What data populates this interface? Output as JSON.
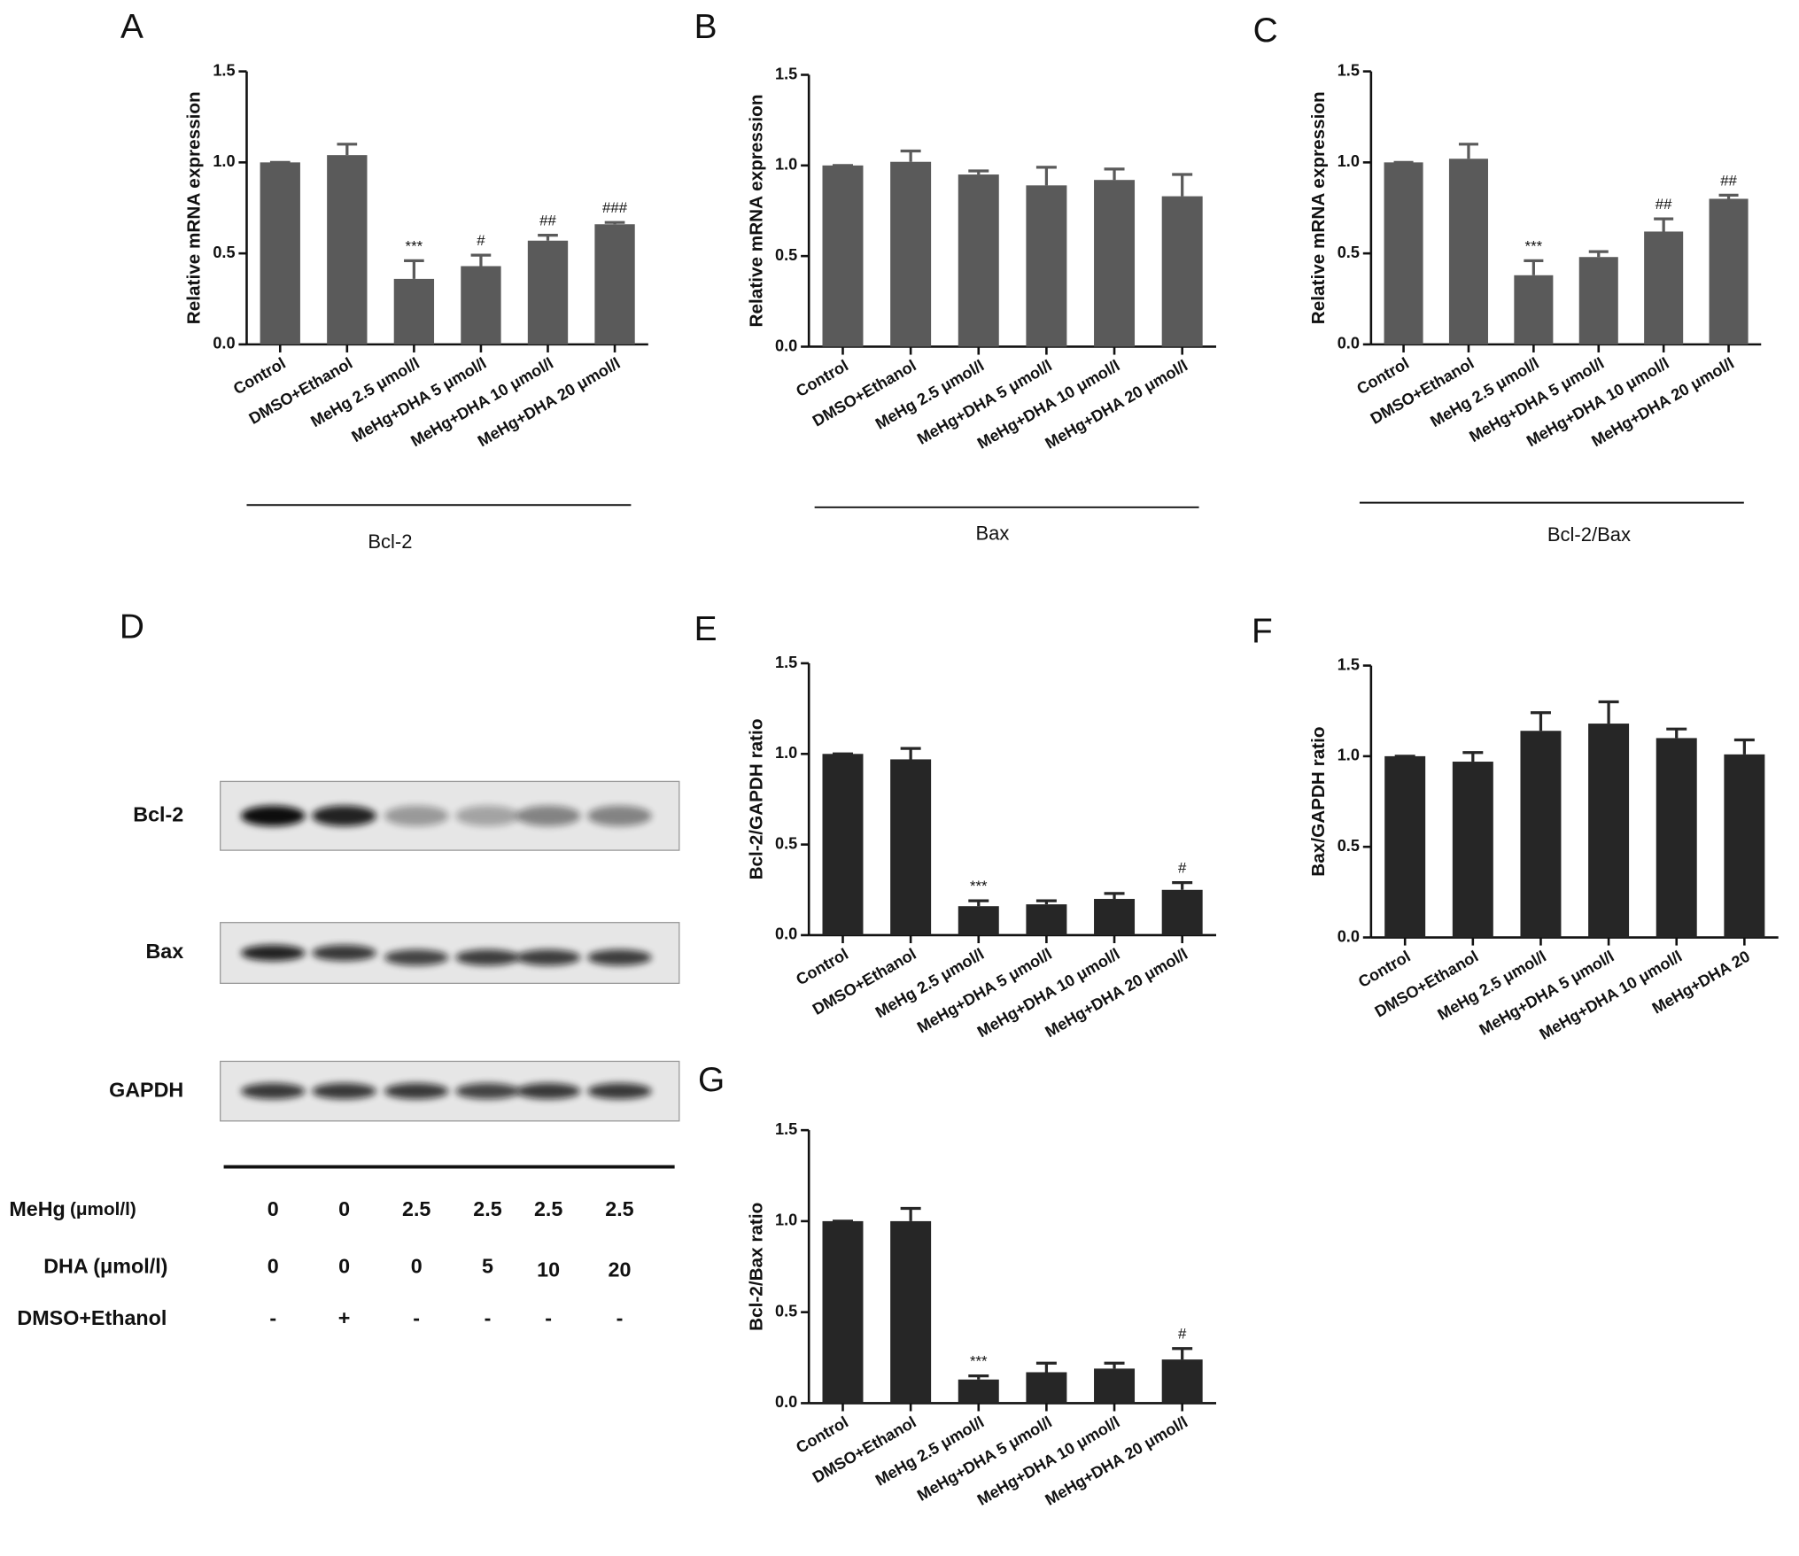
{
  "chart_data": [
    {
      "panel": "A",
      "type": "bar",
      "ylabel": "Relative mRNA expression",
      "group": "Bcl-2",
      "color": "#5a5a5a",
      "categories": [
        "Control",
        "DMSO+Ethanol",
        "MeHg 2.5 μmol/l",
        "MeHg+DHA 5 μmol/l",
        "MeHg+DHA 10 μmol/l",
        "MeHg+DHA 20 μmol/l"
      ],
      "values": [
        1.0,
        1.04,
        0.36,
        0.43,
        0.57,
        0.66
      ],
      "errors": [
        0,
        0.06,
        0.1,
        0.06,
        0.03,
        0.01
      ],
      "annotations": [
        null,
        null,
        "***",
        "#",
        "##",
        "###"
      ],
      "ylim": [
        0,
        1.5
      ],
      "yticks": [
        {
          "value": 0,
          "label": "0.0"
        },
        0.5,
        {
          "value": 1,
          "label": "1.0"
        },
        1.5
      ]
    },
    {
      "panel": "B",
      "type": "bar",
      "ylabel": "Relative mRNA expression",
      "group": "Bax",
      "color": "#5a5a5a",
      "categories": [
        "Control",
        "DMSO+Ethanol",
        "MeHg 2.5 μmol/l",
        "MeHg+DHA 5 μmol/l",
        "MeHg+DHA 10 μmol/l",
        "MeHg+DHA 20 μmol/l"
      ],
      "values": [
        1.0,
        1.02,
        0.95,
        0.89,
        0.92,
        0.83
      ],
      "errors": [
        0,
        0.06,
        0.02,
        0.1,
        0.06,
        0.12
      ],
      "annotations": [
        null,
        null,
        null,
        null,
        null,
        null
      ],
      "ylim": [
        0,
        1.5
      ],
      "yticks": [
        {
          "value": 0,
          "label": "0.0"
        },
        0.5,
        {
          "value": 1,
          "label": "1.0"
        },
        1.5
      ]
    },
    {
      "panel": "C",
      "type": "bar",
      "ylabel": "Relative mRNA expression",
      "group": "Bcl-2/Bax",
      "color": "#5a5a5a",
      "categories": [
        "Control",
        "DMSO+Ethanol",
        "MeHg 2.5 μmol/l",
        "MeHg+DHA 5 μmol/l",
        "MeHg+DHA 10 μmol/l",
        "MeHg+DHA 20 μmol/l"
      ],
      "values": [
        1.0,
        1.02,
        0.38,
        0.48,
        0.62,
        0.8
      ],
      "errors": [
        0,
        0.08,
        0.08,
        0.03,
        0.07,
        0.02
      ],
      "annotations": [
        null,
        null,
        "***",
        null,
        "##",
        "##"
      ],
      "ylim": [
        0,
        1.5
      ],
      "yticks": [
        {
          "value": 0,
          "label": "0.0"
        },
        0.5,
        {
          "value": 1,
          "label": "1.0"
        },
        1.5
      ]
    },
    {
      "panel": "E",
      "type": "bar",
      "ylabel": "Bcl-2/GAPDH ratio",
      "color": "#262626",
      "categories": [
        "Control",
        "DMSO+Ethanol",
        "MeHg 2.5 μmol/l",
        "MeHg+DHA 5 μmol/l",
        "MeHg+DHA 10 μmol/l",
        "MeHg+DHA 20 μmol/l"
      ],
      "values": [
        1.0,
        0.97,
        0.16,
        0.17,
        0.2,
        0.25
      ],
      "errors": [
        0,
        0.06,
        0.03,
        0.02,
        0.03,
        0.04
      ],
      "annotations": [
        null,
        null,
        "***",
        null,
        null,
        "#"
      ],
      "ylim": [
        0,
        1.5
      ],
      "yticks": [
        {
          "value": 0,
          "label": "0.0"
        },
        0.5,
        {
          "value": 1,
          "label": "1.0"
        },
        1.5
      ]
    },
    {
      "panel": "F",
      "type": "bar",
      "ylabel": "Bax/GAPDH ratio",
      "color": "#262626",
      "categories": [
        "Control",
        "DMSO+Ethanol",
        "MeHg 2.5 μmol/l",
        "MeHg+DHA 5 μmol/l",
        "MeHg+DHA 10 μmol/l",
        "MeHg+DHA 20"
      ],
      "values": [
        1.0,
        0.97,
        1.14,
        1.18,
        1.1,
        1.01
      ],
      "errors": [
        0,
        0.05,
        0.1,
        0.12,
        0.05,
        0.08
      ],
      "annotations": [
        null,
        null,
        null,
        null,
        null,
        null
      ],
      "ylim": [
        0,
        1.5
      ],
      "yticks": [
        {
          "value": 0,
          "label": "0.0"
        },
        0.5,
        {
          "value": 1,
          "label": "1.0"
        },
        1.5
      ]
    },
    {
      "panel": "G",
      "type": "bar",
      "ylabel": "Bcl-2/Bax ratio",
      "color": "#262626",
      "categories": [
        "Control",
        "DMSO+Ethanol",
        "MeHg 2.5 μmol/l",
        "MeHg+DHA 5 μmol/l",
        "MeHg+DHA 10 μmol/l",
        "MeHg+DHA 20 μmol/l"
      ],
      "values": [
        1.0,
        1.0,
        0.13,
        0.17,
        0.19,
        0.24
      ],
      "errors": [
        0,
        0.07,
        0.02,
        0.05,
        0.03,
        0.06
      ],
      "annotations": [
        null,
        null,
        "***",
        null,
        null,
        "#"
      ],
      "ylim": [
        0,
        1.5
      ],
      "yticks": [
        {
          "value": 0,
          "label": "0.0"
        },
        0.5,
        {
          "value": 1,
          "label": "1.0"
        },
        1.5
      ]
    }
  ],
  "blot": {
    "panel": "D",
    "bands": [
      "Bcl-2",
      "Bax",
      "GAPDH"
    ],
    "rows": [
      {
        "label": "MeHg",
        "unit": "(μmol/l)",
        "values": [
          "0",
          "0",
          "2.5",
          "2.5",
          "2.5",
          "2.5"
        ]
      },
      {
        "label": "DHA (μmol/l)",
        "values": [
          "0",
          "0",
          "0",
          "5",
          "10",
          "20"
        ]
      },
      {
        "label": "DMSO+Ethanol",
        "values": [
          "-",
          "+",
          "-",
          "-",
          "-",
          "-"
        ]
      }
    ]
  }
}
